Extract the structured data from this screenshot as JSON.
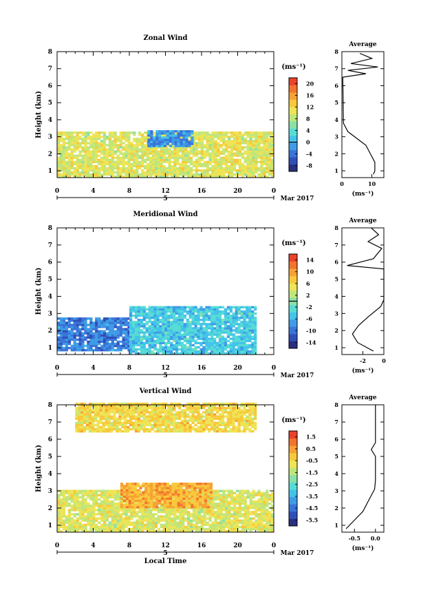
{
  "date_label": "Mar 2017",
  "day_label": "5",
  "xlabel": "Local Time",
  "ylabel": "Height (km)",
  "unit": "(ms⁻¹)",
  "avg_title": "Average",
  "colormap": [
    "#2b2f80",
    "#2f4fb8",
    "#3a74d8",
    "#3f9be6",
    "#44c3ea",
    "#57dcd4",
    "#8be0a6",
    "#c0e67a",
    "#eee455",
    "#f8c93c",
    "#f7a234",
    "#f3732d",
    "#e9432c"
  ],
  "chart_data": [
    {
      "type": "heatmap",
      "title": "Zonal Wind",
      "xlabel": "Local Time",
      "ylabel": "Height (km)",
      "xlim": [
        0,
        24
      ],
      "ylim": [
        0.6,
        8
      ],
      "x_ticks": [
        "0",
        "4",
        "8",
        "12",
        "16",
        "20",
        "0"
      ],
      "y_ticks": [
        "1",
        "2",
        "3",
        "4",
        "5",
        "6",
        "7",
        "8"
      ],
      "colorbar": {
        "min": -10,
        "max": 22,
        "zero_line": 0,
        "ticks": [
          "20",
          "16",
          "12",
          "8",
          "4",
          "0",
          "-4",
          "-8"
        ]
      },
      "regions": [
        {
          "x": [
            0,
            24
          ],
          "y": [
            0.6,
            3.2
          ],
          "value": 10
        },
        {
          "x": [
            10,
            15
          ],
          "y": [
            2.4,
            3.3
          ],
          "value": -2
        }
      ],
      "average": {
        "xlabel": "(ms⁻¹)",
        "xlim": [
          0,
          14
        ],
        "x_ticks": [
          "0",
          "10"
        ],
        "profile": [
          [
            10.5,
            0.8
          ],
          [
            11,
            1.0
          ],
          [
            11,
            1.5
          ],
          [
            9.5,
            2.0
          ],
          [
            8,
            2.5
          ],
          [
            5,
            2.9
          ],
          [
            2,
            3.3
          ],
          [
            0.5,
            3.8
          ],
          [
            0.3,
            6.5
          ],
          [
            8,
            6.7
          ],
          [
            2,
            6.9
          ],
          [
            12,
            7.1
          ],
          [
            3,
            7.3
          ],
          [
            10,
            7.6
          ],
          [
            6,
            7.9
          ]
        ]
      }
    },
    {
      "type": "heatmap",
      "title": "Meridional Wind",
      "xlabel": "Local Time",
      "ylabel": "Height (km)",
      "xlim": [
        0,
        24
      ],
      "ylim": [
        0.6,
        8
      ],
      "x_ticks": [
        "0",
        "4",
        "8",
        "12",
        "16",
        "20",
        "0"
      ],
      "y_ticks": [
        "1",
        "2",
        "3",
        "4",
        "5",
        "6",
        "7",
        "8"
      ],
      "colorbar": {
        "min": -16,
        "max": 16,
        "zero_line": 0,
        "ticks": [
          "14",
          "10",
          "6",
          "2",
          "-2",
          "-6",
          "-10",
          "-14"
        ]
      },
      "regions": [
        {
          "x": [
            0,
            8
          ],
          "y": [
            0.8,
            2.7
          ],
          "value": -9
        },
        {
          "x": [
            8,
            22
          ],
          "y": [
            0.6,
            3.4
          ],
          "value": -4
        }
      ],
      "average": {
        "xlabel": "(ms⁻¹)",
        "xlim": [
          -4,
          0
        ],
        "x_ticks": [
          "-2",
          "0"
        ],
        "profile": [
          [
            -1.0,
            0.8
          ],
          [
            -2.5,
            1.3
          ],
          [
            -3.0,
            1.8
          ],
          [
            -2.4,
            2.3
          ],
          [
            -1.5,
            2.8
          ],
          [
            -0.3,
            3.4
          ],
          [
            0,
            3.8
          ],
          [
            0,
            5.6
          ],
          [
            -3.5,
            5.8
          ],
          [
            -1,
            6.2
          ],
          [
            -0.2,
            6.8
          ],
          [
            -1.5,
            7.2
          ],
          [
            -0.5,
            7.6
          ],
          [
            -1.2,
            8.0
          ]
        ]
      }
    },
    {
      "type": "heatmap",
      "title": "Vertical Wind",
      "xlabel": "Local Time",
      "ylabel": "Height (km)",
      "xlim": [
        0,
        24
      ],
      "ylim": [
        0.6,
        8
      ],
      "x_ticks": [
        "0",
        "4",
        "8",
        "12",
        "16",
        "20",
        "0"
      ],
      "y_ticks": [
        "1",
        "2",
        "3",
        "4",
        "5",
        "6",
        "7",
        "8"
      ],
      "colorbar": {
        "min": -6,
        "max": 2,
        "zero_line": null,
        "ticks": [
          "1.5",
          "0.5",
          "-0.5",
          "-1.5",
          "-2.5",
          "-3.5",
          "-4.5",
          "-5.5"
        ]
      },
      "regions": [
        {
          "x": [
            0,
            24
          ],
          "y": [
            0.6,
            3.0
          ],
          "value": -1
        },
        {
          "x": [
            7,
            17
          ],
          "y": [
            2.0,
            3.4
          ],
          "value": 0.3
        },
        {
          "x": [
            2,
            22
          ],
          "y": [
            6.4,
            8.0
          ],
          "value": -0.5
        }
      ],
      "average": {
        "xlabel": "(ms⁻¹)",
        "xlim": [
          -0.8,
          0.2
        ],
        "x_ticks": [
          "-0.5",
          "0.0"
        ],
        "profile": [
          [
            -0.7,
            0.8
          ],
          [
            -0.5,
            1.3
          ],
          [
            -0.3,
            1.8
          ],
          [
            -0.15,
            2.5
          ],
          [
            -0.02,
            3.1
          ],
          [
            0,
            3.6
          ],
          [
            0,
            5.0
          ],
          [
            -0.1,
            5.4
          ],
          [
            0,
            5.8
          ],
          [
            0,
            8.0
          ]
        ]
      }
    }
  ]
}
